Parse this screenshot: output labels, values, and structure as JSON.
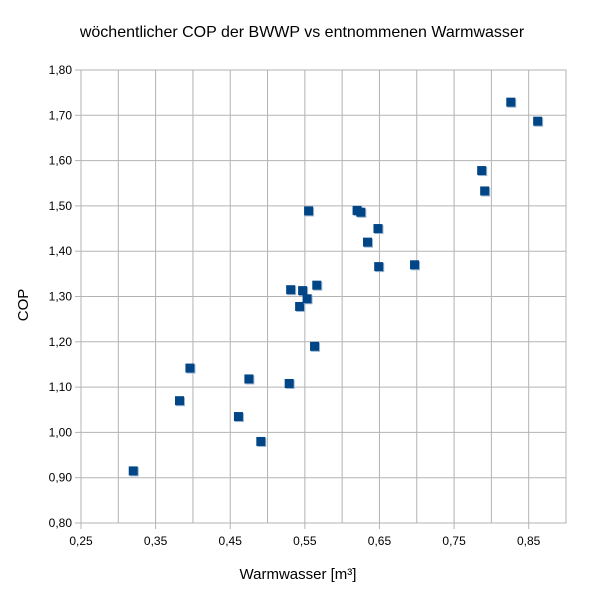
{
  "chart_data": {
    "type": "scatter",
    "title": "wöchentlicher COP der BWWP vs entnommenen Warmwasser",
    "xlabel": "Warmwasser [m³]",
    "ylabel": "COP",
    "xlim": [
      0.25,
      0.9
    ],
    "ylim": [
      0.8,
      1.8
    ],
    "x_ticks": [
      "0,25",
      "0,35",
      "0,45",
      "0,55",
      "0,65",
      "0,75",
      "0,85"
    ],
    "y_ticks": [
      "0,80",
      "0,90",
      "1,00",
      "1,10",
      "1,20",
      "1,30",
      "1,40",
      "1,50",
      "1,60",
      "1,70",
      "1,80"
    ],
    "grid": "vertical-and-horizontal",
    "marker_color": "#004586",
    "series": [
      {
        "points": [
          {
            "x": 0.32,
            "y": 0.915
          },
          {
            "x": 0.382,
            "y": 1.07
          },
          {
            "x": 0.396,
            "y": 1.142
          },
          {
            "x": 0.461,
            "y": 1.035
          },
          {
            "x": 0.475,
            "y": 1.118
          },
          {
            "x": 0.491,
            "y": 0.98
          },
          {
            "x": 0.529,
            "y": 1.108
          },
          {
            "x": 0.531,
            "y": 1.315
          },
          {
            "x": 0.543,
            "y": 1.278
          },
          {
            "x": 0.547,
            "y": 1.313
          },
          {
            "x": 0.553,
            "y": 1.295
          },
          {
            "x": 0.555,
            "y": 1.489
          },
          {
            "x": 0.563,
            "y": 1.19
          },
          {
            "x": 0.566,
            "y": 1.325
          },
          {
            "x": 0.62,
            "y": 1.49
          },
          {
            "x": 0.625,
            "y": 1.486
          },
          {
            "x": 0.634,
            "y": 1.42
          },
          {
            "x": 0.648,
            "y": 1.45
          },
          {
            "x": 0.649,
            "y": 1.366
          },
          {
            "x": 0.697,
            "y": 1.37
          },
          {
            "x": 0.787,
            "y": 1.578
          },
          {
            "x": 0.791,
            "y": 1.533
          },
          {
            "x": 0.826,
            "y": 1.729
          },
          {
            "x": 0.862,
            "y": 1.687
          }
        ]
      }
    ]
  }
}
